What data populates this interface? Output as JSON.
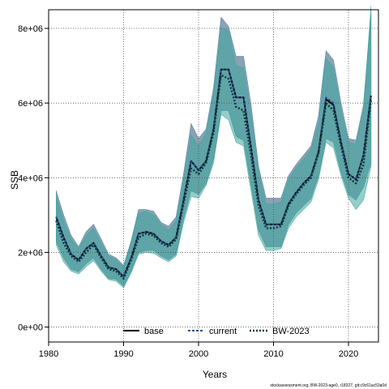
{
  "chart_data": {
    "type": "line",
    "xlabel": "Years",
    "ylabel": "SSB",
    "xlim": [
      1980,
      2024
    ],
    "ylim": [
      -400000,
      8500000
    ],
    "x_ticks": [
      1980,
      1990,
      2000,
      2010,
      2020
    ],
    "y_ticks": [
      0,
      2000000,
      4000000,
      6000000,
      8000000
    ],
    "x_tick_labels": [
      "1980",
      "1990",
      "2000",
      "2010",
      "2020"
    ],
    "y_tick_labels": [
      "0e+00",
      "2e+06",
      "4e+06",
      "6e+06",
      "8e+06"
    ],
    "grid": true,
    "legend_position": "bottom-center",
    "footer": "stockassessment.org, BW-2023-age0, r18327, git:c9c61ac53a0d",
    "series": [
      {
        "name": "base",
        "color": "#000000",
        "band_color": "#8a8fa3",
        "x": [
          1981,
          1982,
          1983,
          1984,
          1985,
          1986,
          1987,
          1988,
          1989,
          1990,
          1991,
          1992,
          1993,
          1994,
          1995,
          1996,
          1997,
          1998,
          1999,
          2000,
          2001,
          2002,
          2003,
          2004,
          2005,
          2006,
          2007,
          2008,
          2009,
          2010,
          2011,
          2012,
          2013,
          2014,
          2015,
          2016,
          2017,
          2018,
          2019,
          2020,
          2021,
          2022,
          2023
        ],
        "values": [
          2950000,
          2400000,
          1950000,
          1800000,
          2100000,
          2250000,
          1900000,
          1600000,
          1550000,
          1350000,
          1850000,
          2500000,
          2550000,
          2500000,
          2300000,
          2200000,
          2400000,
          3400000,
          4450000,
          4200000,
          4450000,
          5300000,
          6900000,
          6900000,
          6150000,
          6150000,
          4800000,
          3400000,
          2750000,
          2750000,
          2750000,
          3300000,
          3600000,
          3850000,
          4050000,
          4700000,
          6100000,
          5950000,
          4950000,
          4100000,
          3950000,
          4600000,
          6200000
        ],
        "lower": [
          2300000,
          1850000,
          1550000,
          1480000,
          1700000,
          1850000,
          1550000,
          1300000,
          1280000,
          1100000,
          1500000,
          2000000,
          2050000,
          2050000,
          1900000,
          1800000,
          1950000,
          2900000,
          3650000,
          3550000,
          3850000,
          4500000,
          5800000,
          5800000,
          5100000,
          5000000,
          3800000,
          2600000,
          2150000,
          2150000,
          2150000,
          2750000,
          3050000,
          3250000,
          3450000,
          4050000,
          5050000,
          4950000,
          4150000,
          3550000,
          3400000,
          3750000,
          4400000
        ],
        "upper": [
          3650000,
          3000000,
          2450000,
          2150000,
          2550000,
          2750000,
          2350000,
          1950000,
          1850000,
          1650000,
          2300000,
          3150000,
          3150000,
          3100000,
          2800000,
          2700000,
          2950000,
          4100000,
          5450000,
          5050000,
          5300000,
          6400000,
          8300000,
          8050000,
          7250000,
          7250000,
          5950000,
          4300000,
          3450000,
          3450000,
          3450000,
          4050000,
          4350000,
          4600000,
          4850000,
          5650000,
          7400000,
          7150000,
          6000000,
          5050000,
          5000000,
          5950000,
          8400000
        ]
      },
      {
        "name": "current",
        "color": "#2b4d8c",
        "band_color": "#5b8fb0",
        "x": [
          1981,
          1982,
          1983,
          1984,
          1985,
          1986,
          1987,
          1988,
          1989,
          1990,
          1991,
          1992,
          1993,
          1994,
          1995,
          1996,
          1997,
          1998,
          1999,
          2000,
          2001,
          2002,
          2003,
          2004,
          2005,
          2006,
          2007,
          2008,
          2009,
          2010,
          2011,
          2012,
          2013,
          2014,
          2015,
          2016,
          2017,
          2018,
          2019,
          2020,
          2021,
          2022,
          2023
        ],
        "values": [
          2950000,
          2400000,
          1950000,
          1800000,
          2100000,
          2250000,
          1900000,
          1600000,
          1550000,
          1350000,
          1850000,
          2500000,
          2550000,
          2500000,
          2300000,
          2200000,
          2400000,
          3400000,
          4450000,
          4200000,
          4450000,
          5300000,
          6900000,
          6900000,
          6150000,
          6150000,
          4800000,
          3400000,
          2750000,
          2750000,
          2750000,
          3300000,
          3600000,
          3850000,
          4050000,
          4700000,
          6150000,
          6000000,
          4950000,
          4100000,
          3950000,
          4600000,
          6200000
        ],
        "lower": [
          2300000,
          1850000,
          1550000,
          1480000,
          1700000,
          1850000,
          1550000,
          1300000,
          1280000,
          1100000,
          1500000,
          2000000,
          2050000,
          2050000,
          1900000,
          1800000,
          1950000,
          2900000,
          3650000,
          3550000,
          3850000,
          4500000,
          5800000,
          5800000,
          5100000,
          5000000,
          3800000,
          2600000,
          2150000,
          2150000,
          2150000,
          2750000,
          3050000,
          3250000,
          3450000,
          4050000,
          5050000,
          4950000,
          4150000,
          3550000,
          3400000,
          3750000,
          4400000
        ],
        "upper": [
          3650000,
          3000000,
          2450000,
          2150000,
          2550000,
          2750000,
          2350000,
          1950000,
          1850000,
          1650000,
          2300000,
          3150000,
          3150000,
          3100000,
          2800000,
          2700000,
          2950000,
          4100000,
          5450000,
          5050000,
          5300000,
          6400000,
          8300000,
          8050000,
          7250000,
          7250000,
          5950000,
          4300000,
          3450000,
          3450000,
          3450000,
          4050000,
          4350000,
          4600000,
          4850000,
          5650000,
          7400000,
          7150000,
          6000000,
          5050000,
          5000000,
          5950000,
          8400000
        ]
      },
      {
        "name": "BW-2023",
        "color": "#0b3d3a",
        "band_color": "#3aa89a",
        "x": [
          1981,
          1982,
          1983,
          1984,
          1985,
          1986,
          1987,
          1988,
          1989,
          1990,
          1991,
          1992,
          1993,
          1994,
          1995,
          1996,
          1997,
          1998,
          1999,
          2000,
          2001,
          2002,
          2003,
          2004,
          2005,
          2006,
          2007,
          2008,
          2009,
          2010,
          2011,
          2012,
          2013,
          2014,
          2015,
          2016,
          2017,
          2018,
          2019,
          2020,
          2021,
          2022,
          2023
        ],
        "values": [
          2850000,
          2250000,
          1900000,
          1750000,
          2000000,
          2200000,
          1850000,
          1550000,
          1500000,
          1300000,
          1800000,
          2400000,
          2500000,
          2450000,
          2250000,
          2150000,
          2350000,
          3300000,
          4250000,
          4100000,
          4400000,
          5200000,
          6750000,
          6650000,
          5900000,
          5800000,
          4600000,
          3250000,
          2650000,
          2650000,
          2700000,
          3250000,
          3550000,
          3800000,
          4000000,
          4650000,
          6000000,
          5800000,
          4850000,
          4000000,
          3850000,
          4350000,
          6100000
        ],
        "lower": [
          2200000,
          1750000,
          1500000,
          1420000,
          1620000,
          1780000,
          1500000,
          1270000,
          1230000,
          1050000,
          1450000,
          1950000,
          2000000,
          1980000,
          1850000,
          1750000,
          1900000,
          2800000,
          3500000,
          3450000,
          3800000,
          4400000,
          5700000,
          5550000,
          4950000,
          4850000,
          3650000,
          2450000,
          2050000,
          2050000,
          2100000,
          2650000,
          2950000,
          3150000,
          3350000,
          3950000,
          4950000,
          4800000,
          4050000,
          3450000,
          3150000,
          3400000,
          4300000
        ],
        "upper": [
          3500000,
          2850000,
          2350000,
          2100000,
          2450000,
          2650000,
          2250000,
          1900000,
          1800000,
          1600000,
          2250000,
          3050000,
          3100000,
          3000000,
          2750000,
          2600000,
          2850000,
          3950000,
          5150000,
          4850000,
          5200000,
          6250000,
          8000000,
          7950000,
          7000000,
          6950000,
          5700000,
          4150000,
          3300000,
          3300000,
          3350000,
          3950000,
          4250000,
          4500000,
          4750000,
          5450000,
          7200000,
          6950000,
          5800000,
          4950000,
          4900000,
          5800000,
          8600000
        ]
      }
    ]
  }
}
